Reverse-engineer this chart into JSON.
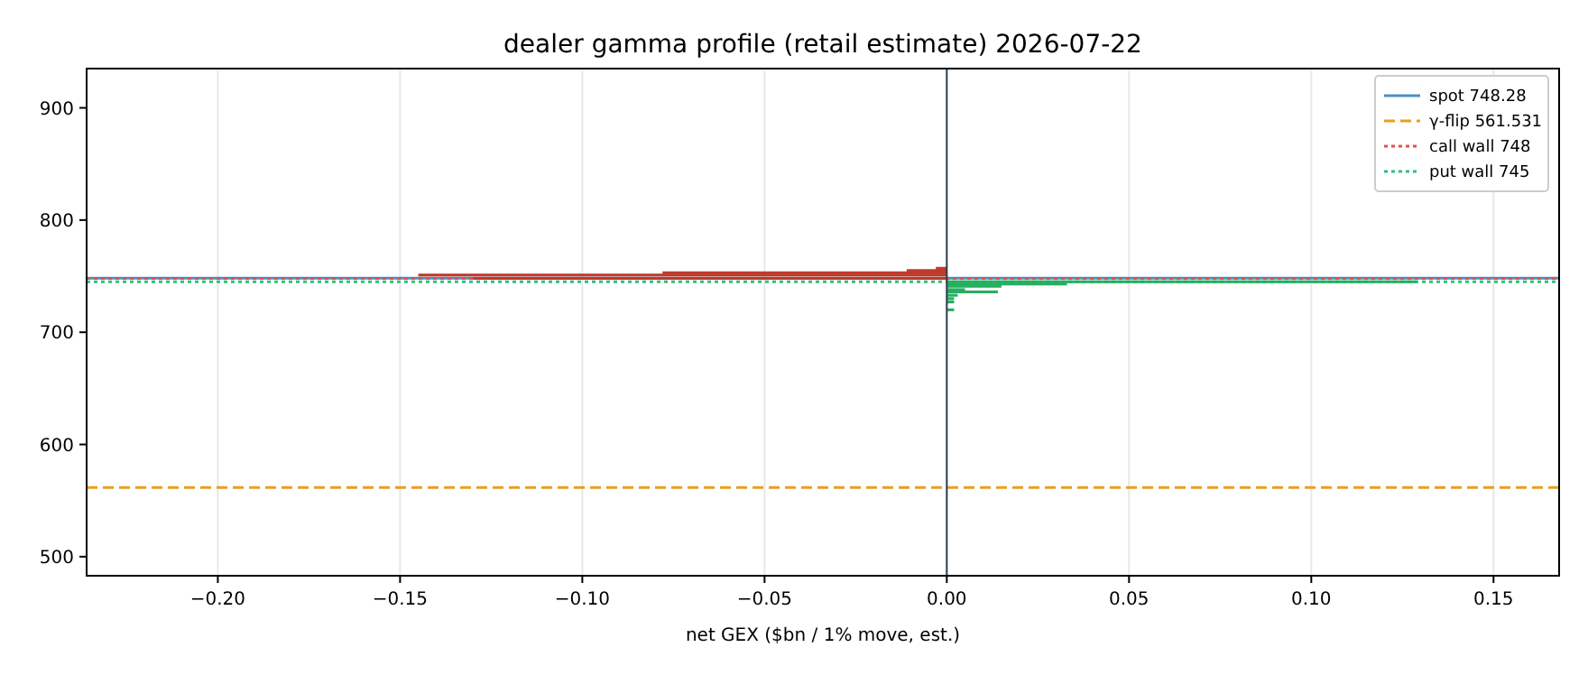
{
  "chart_data": {
    "type": "bar",
    "orientation": "horizontal",
    "title": "dealer gamma profile (retail estimate)  2026-07-22",
    "xlabel": "net GEX ($bn / 1% move, est.)",
    "series": [
      {
        "color": "#c0392b",
        "x": [
          757,
          755,
          753,
          751,
          748
        ],
        "values": [
          -0.003,
          -0.011,
          -0.078,
          -0.145,
          -0.13
        ]
      },
      {
        "color": "#27ae60",
        "x": [
          745,
          743,
          741,
          738,
          736,
          733,
          730,
          727,
          720
        ],
        "values": [
          0.129,
          0.033,
          0.015,
          0.005,
          0.014,
          0.003,
          0.002,
          0.002,
          0.002
        ]
      }
    ],
    "xlim": [
      -0.236,
      0.168
    ],
    "xticks": [
      {
        "value": -0.2,
        "label": "−0.20"
      },
      {
        "value": -0.15,
        "label": "−0.15"
      },
      {
        "value": -0.1,
        "label": "−0.10"
      },
      {
        "value": -0.05,
        "label": "−0.05"
      },
      {
        "value": 0,
        "label": "0.00"
      },
      {
        "value": 0.05,
        "label": "0.05"
      },
      {
        "value": 0.1,
        "label": "0.10"
      },
      {
        "value": 0.15,
        "label": "0.15"
      }
    ],
    "ylim": [
      483,
      935
    ],
    "yticks": [
      500,
      600,
      700,
      800,
      900
    ],
    "ref_lines": [
      {
        "axis": "x",
        "value": 0,
        "color": "#2c3e50",
        "line_style": "solid"
      },
      {
        "axis": "y",
        "value": 748.28,
        "label": "spot 748.28",
        "color": "#4a8fc4",
        "line_style": "solid"
      },
      {
        "axis": "y",
        "value": 561.531,
        "label": "γ-flip 561.531",
        "color": "#e8a020",
        "line_style": "dashed"
      },
      {
        "axis": "y",
        "value": 748,
        "label": "call wall 748",
        "color": "#e05050",
        "line_style": "dotted"
      },
      {
        "axis": "y",
        "value": 745,
        "label": "put wall 745",
        "color": "#30c080",
        "line_style": "dotted"
      }
    ],
    "grid": "x",
    "legend": "top right"
  }
}
